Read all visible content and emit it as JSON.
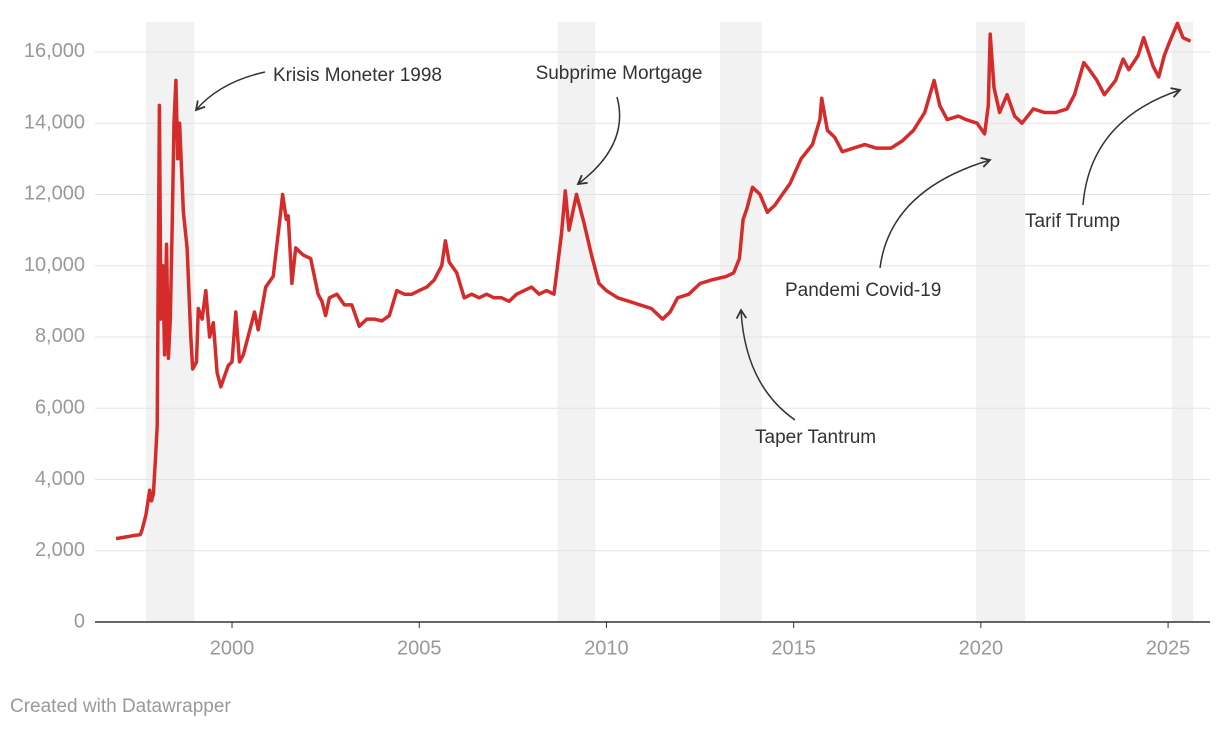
{
  "chart_data": {
    "type": "line",
    "color": "#d62b2b",
    "x": [
      1996.9,
      1997.4,
      1997.55,
      1997.6,
      1997.7,
      1997.8,
      1997.85,
      1997.9,
      1997.95,
      1998.0,
      1998.03,
      1998.06,
      1998.1,
      1998.15,
      1998.2,
      1998.25,
      1998.3,
      1998.35,
      1998.4,
      1998.45,
      1998.5,
      1998.55,
      1998.6,
      1998.7,
      1998.8,
      1998.9,
      1998.95,
      1999.05,
      1999.1,
      1999.2,
      1999.3,
      1999.4,
      1999.5,
      1999.6,
      1999.7,
      1999.8,
      1999.9,
      2000.0,
      2000.1,
      2000.2,
      2000.3,
      2000.5,
      2000.6,
      2000.7,
      2000.9,
      2001.1,
      2001.3,
      2001.35,
      2001.45,
      2001.5,
      2001.6,
      2001.7,
      2001.8,
      2001.9,
      2002.1,
      2002.3,
      2002.4,
      2002.5,
      2002.6,
      2002.8,
      2003.0,
      2003.2,
      2003.4,
      2003.6,
      2003.8,
      2004.0,
      2004.2,
      2004.4,
      2004.6,
      2004.8,
      2005.0,
      2005.2,
      2005.4,
      2005.6,
      2005.7,
      2005.8,
      2006.0,
      2006.2,
      2006.4,
      2006.6,
      2006.8,
      2007.0,
      2007.2,
      2007.4,
      2007.6,
      2007.8,
      2008.0,
      2008.2,
      2008.4,
      2008.6,
      2008.8,
      2008.9,
      2009.0,
      2009.2,
      2009.4,
      2009.6,
      2009.8,
      2010.0,
      2010.3,
      2010.6,
      2010.9,
      2011.2,
      2011.5,
      2011.7,
      2011.9,
      2012.2,
      2012.5,
      2012.8,
      2013.2,
      2013.4,
      2013.55,
      2013.65,
      2013.75,
      2013.9,
      2014.1,
      2014.3,
      2014.5,
      2014.7,
      2014.9,
      2015.2,
      2015.5,
      2015.7,
      2015.75,
      2015.9,
      2016.1,
      2016.3,
      2016.6,
      2016.9,
      2017.2,
      2017.6,
      2017.9,
      2018.2,
      2018.5,
      2018.75,
      2018.9,
      2019.1,
      2019.4,
      2019.6,
      2019.9,
      2020.1,
      2020.2,
      2020.25,
      2020.35,
      2020.5,
      2020.7,
      2020.9,
      2021.1,
      2021.4,
      2021.7,
      2022.0,
      2022.3,
      2022.5,
      2022.75,
      2022.9,
      2023.1,
      2023.3,
      2023.6,
      2023.8,
      2023.95,
      2024.2,
      2024.35,
      2024.6,
      2024.75,
      2024.9,
      2025.05,
      2025.25,
      2025.4,
      2025.6
    ],
    "values": [
      2340,
      2430,
      2450,
      2600,
      3000,
      3700,
      3400,
      3600,
      4500,
      5500,
      10000,
      14500,
      8500,
      10000,
      7500,
      10600,
      7400,
      8500,
      11000,
      14000,
      15200,
      13000,
      14000,
      11500,
      10500,
      8000,
      7100,
      7300,
      8800,
      8500,
      9300,
      8000,
      8400,
      7000,
      6600,
      6900,
      7200,
      7300,
      8700,
      7300,
      7500,
      8300,
      8700,
      8200,
      9400,
      9700,
      11500,
      12000,
      11300,
      11400,
      9500,
      10500,
      10400,
      10300,
      10200,
      9200,
      9000,
      8600,
      9100,
      9200,
      8900,
      8900,
      8300,
      8500,
      8500,
      8450,
      8600,
      9300,
      9200,
      9200,
      9300,
      9400,
      9600,
      10000,
      10700,
      10100,
      9800,
      9100,
      9200,
      9100,
      9200,
      9100,
      9100,
      9000,
      9200,
      9300,
      9400,
      9200,
      9300,
      9200,
      10900,
      12100,
      11000,
      12000,
      11200,
      10300,
      9500,
      9300,
      9100,
      9000,
      8900,
      8800,
      8500,
      8700,
      9100,
      9200,
      9500,
      9600,
      9700,
      9800,
      10200,
      11300,
      11600,
      12200,
      12000,
      11500,
      11700,
      12000,
      12300,
      13000,
      13400,
      14100,
      14700,
      13800,
      13600,
      13200,
      13300,
      13400,
      13300,
      13300,
      13500,
      13800,
      14300,
      15200,
      14500,
      14100,
      14200,
      14100,
      14000,
      13700,
      14500,
      16500,
      15000,
      14300,
      14800,
      14200,
      14000,
      14400,
      14300,
      14300,
      14400,
      14800,
      15700,
      15500,
      15200,
      14800,
      15200,
      15800,
      15500,
      15900,
      16400,
      15600,
      15300,
      15900,
      16300,
      16800,
      16400,
      16300
    ],
    "bands": [
      [
        1997.7,
        1999.0
      ],
      [
        2008.69,
        2009.7
      ],
      [
        2013.03,
        2014.15
      ],
      [
        2019.87,
        2021.18
      ],
      [
        2025.1,
        2025.67
      ]
    ],
    "annotations": [
      "Krisis Moneter 1998",
      "Subprime Mortgage",
      "Taper Tantrum",
      "Pandemi Covid-19",
      "Tarif Trump"
    ],
    "xlim": [
      1996.34,
      2026.12
    ],
    "xticks": [
      2000,
      2005,
      2010,
      2015,
      2020,
      2025
    ],
    "ylim": [
      0,
      16840
    ],
    "yticks": [
      0,
      {
        "value": 2000,
        "label": "2,000"
      },
      {
        "value": 4000,
        "label": "4,000"
      },
      {
        "value": 6000,
        "label": "6,000"
      },
      {
        "value": 8000,
        "label": "8,000"
      },
      {
        "value": 10000,
        "label": "10,000"
      },
      {
        "value": 12000,
        "label": "12,000"
      },
      {
        "value": 14000,
        "label": "14,000"
      },
      {
        "value": 16000,
        "label": "16,000"
      }
    ],
    "grid": true,
    "footer": "Created with Datawrapper"
  }
}
